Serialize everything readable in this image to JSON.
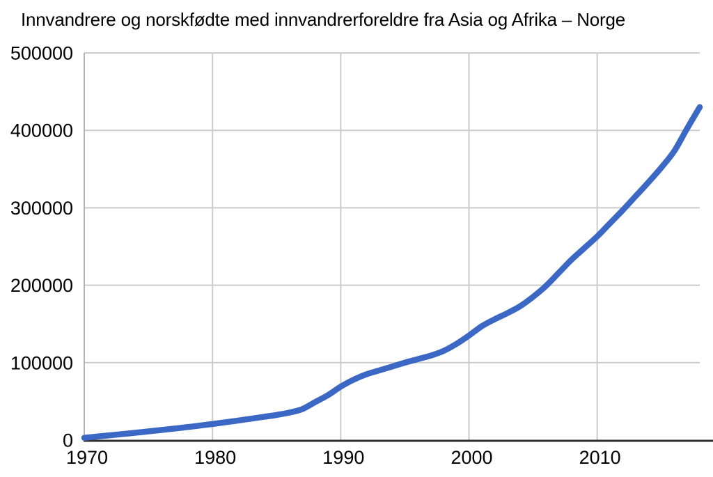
{
  "chart_data": {
    "type": "line",
    "title": "Innvandrere og norskfødte med innvandrerforeldre fra Asia og Afrika – Norge",
    "xlabel": "",
    "ylabel": "",
    "xlim": [
      1970,
      2018
    ],
    "ylim": [
      0,
      500000
    ],
    "x_ticks": [
      1970,
      1980,
      1990,
      2000,
      2010
    ],
    "y_ticks": [
      0,
      100000,
      200000,
      300000,
      400000,
      500000
    ],
    "grid": true,
    "legend": false,
    "colors": {
      "line": "#3b67c5",
      "gridline": "#cccccc",
      "plot_left_edge": "#b3b3b3",
      "axis": "#2f2f2f",
      "text": "#000000",
      "background": "#ffffff"
    },
    "x": [
      1970,
      1971,
      1972,
      1973,
      1974,
      1975,
      1976,
      1977,
      1978,
      1979,
      1980,
      1981,
      1982,
      1983,
      1984,
      1985,
      1986,
      1987,
      1988,
      1989,
      1990,
      1991,
      1992,
      1993,
      1994,
      1995,
      1996,
      1997,
      1998,
      1999,
      2000,
      2001,
      2002,
      2003,
      2004,
      2005,
      2006,
      2007,
      2008,
      2009,
      2010,
      2011,
      2012,
      2013,
      2014,
      2015,
      2016,
      2017,
      2018
    ],
    "values": [
      3000,
      4600,
      6200,
      7800,
      9500,
      11200,
      13000,
      14800,
      16700,
      18700,
      20800,
      23000,
      25300,
      27600,
      30000,
      32500,
      35500,
      40000,
      49000,
      58000,
      69000,
      78000,
      85000,
      90000,
      95000,
      100000,
      104500,
      109000,
      115000,
      124000,
      135000,
      147000,
      156000,
      164000,
      173000,
      185000,
      199000,
      216000,
      233000,
      248000,
      263000,
      280000,
      297000,
      315000,
      333000,
      352000,
      373000,
      402000,
      430000
    ]
  }
}
